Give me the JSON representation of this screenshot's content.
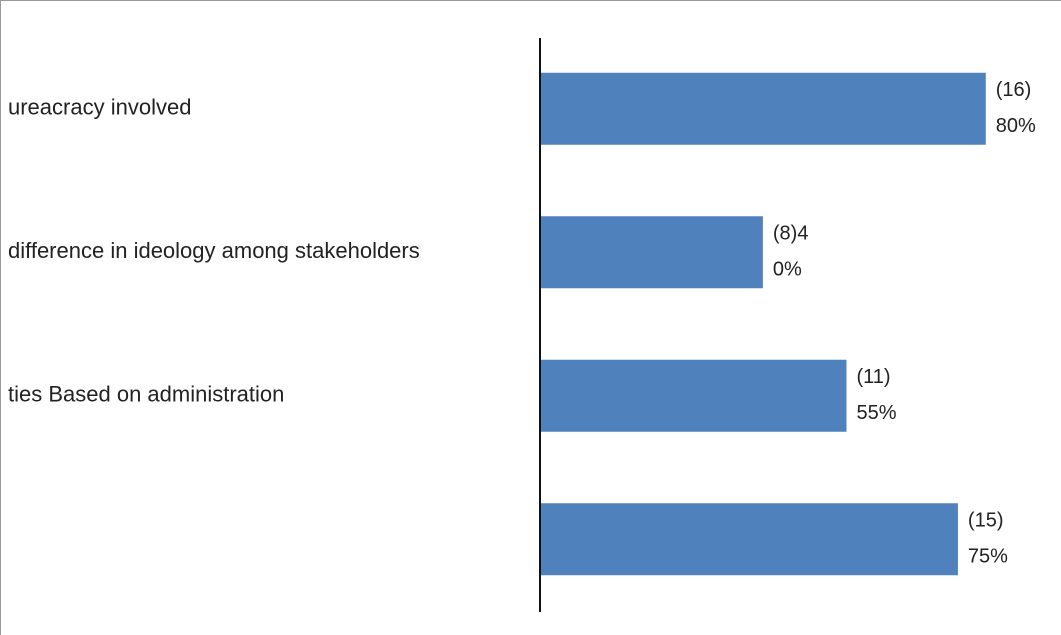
{
  "chart_data": {
    "type": "barh",
    "categories": [
      "ureacracy involved",
      "difference in ideology among stakeholders",
      "ties Based on administration",
      null
    ],
    "values": [
      16,
      8,
      11,
      15
    ],
    "value_labels": [
      [
        "(16)",
        "80%"
      ],
      [
        "(8)4",
        "0%"
      ],
      [
        "(11)",
        "55%"
      ],
      [
        "(15)",
        "75%"
      ]
    ],
    "color": "#4f81bd",
    "xlim": [
      0,
      18.7
    ]
  }
}
